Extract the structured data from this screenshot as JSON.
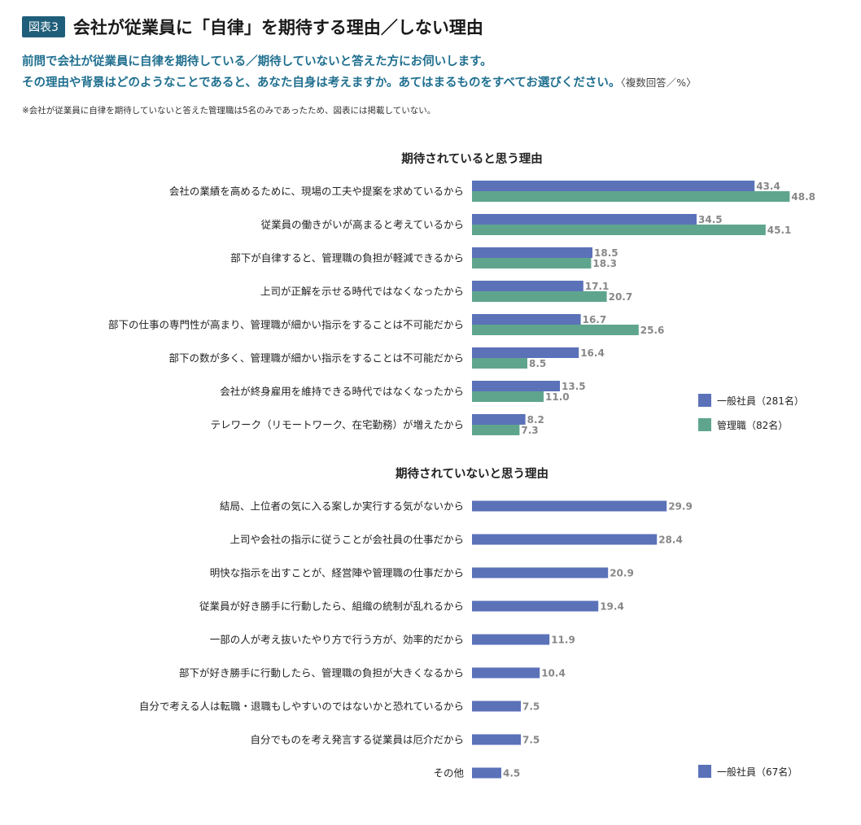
{
  "header": {
    "badge": "図表3",
    "title": "会社が従業員に「自律」を期待する理由／しない理由"
  },
  "question": {
    "line1": "前問で会社が従業員に自律を期待している／期待していないと答えた方にお伺いします。",
    "line2": "その理由や背景はどのようなことであると、あなた自身は考えますか。あてはまるものをすべてお選びください。",
    "line2_suffix": "〈複数回答／%〉"
  },
  "note": "※会社が従業員に自律を期待していないと答えた管理職は5名のみであったため、図表には掲載していない。",
  "colors": {
    "general": "#5b72b9",
    "manager": "#5fa58e"
  },
  "chart_data": [
    {
      "type": "bar",
      "orientation": "horizontal",
      "title": "期待されていると思う理由",
      "categories": [
        "会社の業績を高めるために、現場の工夫や提案を求めているから",
        "従業員の働きがいが高まると考えているから",
        "部下が自律すると、管理職の負担が軽減できるから",
        "上司が正解を示せる時代ではなくなったから",
        "部下の仕事の専門性が高まり、管理職が細かい指示をすることは不可能だから",
        "部下の数が多く、管理職が細かい指示をすることは不可能だから",
        "会社が終身雇用を維持できる時代ではなくなったから",
        "テレワーク（リモートワーク、在宅勤務）が増えたから"
      ],
      "series": [
        {
          "name": "一般社員（281名）",
          "color": "#5b72b9",
          "values": [
            43.4,
            34.5,
            18.5,
            17.1,
            16.7,
            16.4,
            13.5,
            8.2
          ]
        },
        {
          "name": "管理職（82名）",
          "color": "#5fa58e",
          "values": [
            48.8,
            45.1,
            18.3,
            20.7,
            25.6,
            8.5,
            11.0,
            7.3
          ]
        }
      ],
      "legend_position": "bottom-right"
    },
    {
      "type": "bar",
      "orientation": "horizontal",
      "title": "期待されていないと思う理由",
      "categories": [
        "結局、上位者の気に入る案しか実行する気がないから",
        "上司や会社の指示に従うことが会社員の仕事だから",
        "明快な指示を出すことが、経営陣や管理職の仕事だから",
        "従業員が好き勝手に行動したら、組織の統制が乱れるから",
        "一部の人が考え抜いたやり方で行う方が、効率的だから",
        "部下が好き勝手に行動したら、管理職の負担が大きくなるから",
        "自分で考える人は転職・退職もしやすいのではないかと恐れているから",
        "自分でものを考え発言する従業員は厄介だから",
        "その他"
      ],
      "series": [
        {
          "name": "一般社員（67名）",
          "color": "#5b72b9",
          "values": [
            29.9,
            28.4,
            20.9,
            19.4,
            11.9,
            10.4,
            7.5,
            7.5,
            4.5
          ]
        }
      ],
      "legend_position": "bottom-right"
    }
  ]
}
